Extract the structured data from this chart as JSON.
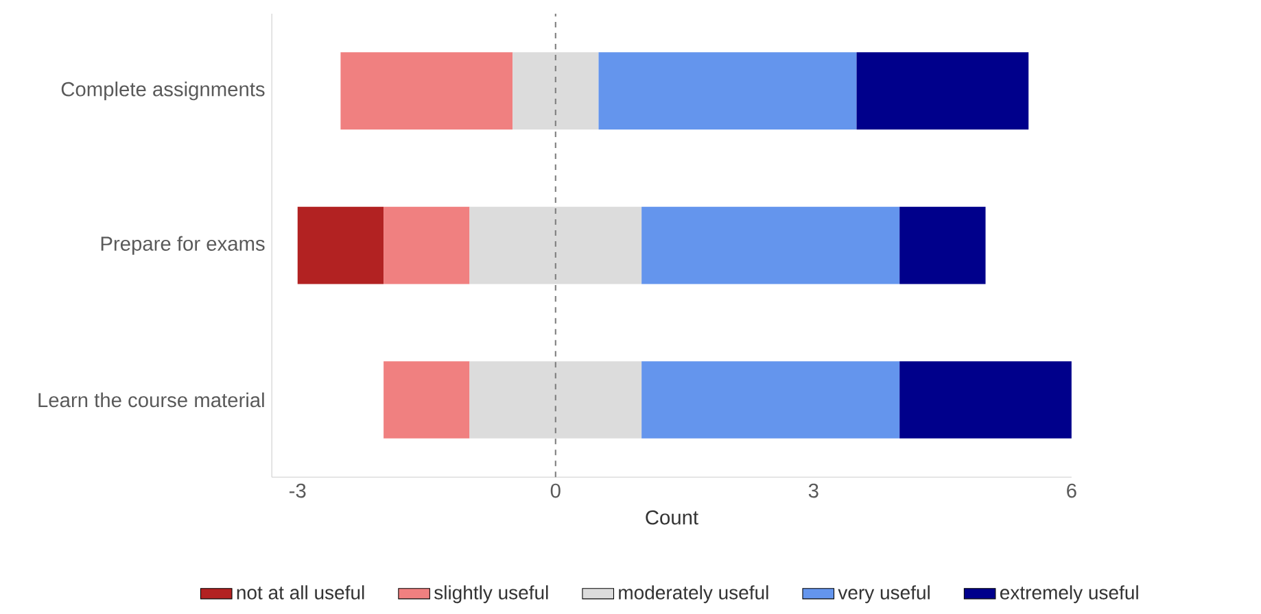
{
  "chart_data": {
    "type": "bar",
    "orientation": "horizontal",
    "categories": [
      "Complete assignments",
      "Prepare for exams",
      "Learn the course material"
    ],
    "series": [
      {
        "name": "not at all useful",
        "color": "#b22222",
        "base": [
          null,
          -3,
          null
        ],
        "values": [
          null,
          1,
          null
        ]
      },
      {
        "name": "slightly useful",
        "color": "#f08080",
        "base": [
          -2.5,
          -2,
          -2
        ],
        "values": [
          2,
          1,
          1
        ]
      },
      {
        "name": "moderately useful",
        "color": "#dcdcdc",
        "base": [
          -0.5,
          -1,
          -1
        ],
        "values": [
          1,
          2,
          2
        ]
      },
      {
        "name": "very useful",
        "color": "#6495ed",
        "base": [
          0.5,
          1,
          1
        ],
        "values": [
          3,
          3,
          3
        ]
      },
      {
        "name": "extremely useful",
        "color": "#00008b",
        "base": [
          3.5,
          4,
          4
        ],
        "values": [
          2,
          1,
          2
        ]
      }
    ],
    "xlabel": "Count",
    "xlim": [
      -3.3,
      6
    ],
    "xticks": [
      -3,
      0,
      3,
      6
    ],
    "ref_lines": [
      {
        "axis": "x",
        "value": 0,
        "color": "#808080",
        "line_style": "dashed"
      }
    ],
    "grid": false,
    "legend": "bottom"
  }
}
